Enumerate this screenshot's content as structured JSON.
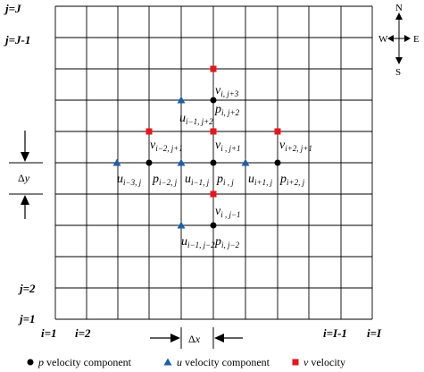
{
  "row_labels": {
    "top": {
      "base": "j",
      "suffix": "=J"
    },
    "second": {
      "base": "j",
      "suffix": "=J-1"
    },
    "row2": {
      "base": "j",
      "suffix": "=2"
    },
    "row1": {
      "base": "j",
      "suffix": "=1"
    }
  },
  "col_labels": {
    "c1": {
      "base": "i",
      "suffix": "=1"
    },
    "c2": {
      "base": "i",
      "suffix": "=2"
    },
    "cIm1": {
      "base": "i",
      "suffix": "=I-1"
    },
    "cI": {
      "base": "i",
      "suffix": "=I"
    }
  },
  "compass": {
    "n": "N",
    "s": "S",
    "e": "E",
    "w": "W"
  },
  "spacing": {
    "dy": {
      "delta": "Δ",
      "var": "y"
    },
    "dx": {
      "delta": "Δ",
      "var": "x"
    }
  },
  "variables": {
    "v_i_j3": {
      "base": "v",
      "sub": "i, j+3"
    },
    "p_i_j2": {
      "base": "p",
      "sub": "i, j+2"
    },
    "u_im1_j2": {
      "base": "u",
      "sub": "i−1, j+2"
    },
    "v_im2_j1": {
      "base": "v",
      "sub": "i−2, j+1"
    },
    "v_i_j1": {
      "base": "v",
      "sub": "i , j+1"
    },
    "v_ip2_j1": {
      "base": "v",
      "sub": "i+2, j+1"
    },
    "u_im3_j": {
      "base": "u",
      "sub": "i−3, j"
    },
    "p_im2_j": {
      "base": "p",
      "sub": "i−2, j"
    },
    "u_im1_j": {
      "base": "u",
      "sub": "i−1, j"
    },
    "p_i_j": {
      "base": "p",
      "sub": "i , j"
    },
    "u_ip1_j": {
      "base": "u",
      "sub": "i+1, j"
    },
    "p_ip2_j": {
      "base": "p",
      "sub": "i+2, j"
    },
    "v_i_jm1": {
      "base": "v",
      "sub": "i , j−1"
    },
    "u_im1_jm2": {
      "base": "u",
      "sub": "i−1, j−2"
    },
    "p_i_jm2": {
      "base": "p",
      "sub": "i, j−2"
    }
  },
  "legend": {
    "p": {
      "var": "p",
      "text": "velocity component"
    },
    "u": {
      "var": "u",
      "text": "velocity component"
    },
    "v": {
      "var": "v",
      "text": "velocity"
    }
  },
  "colors": {
    "p_marker": "#000000",
    "u_marker": "#1f5fa8",
    "v_marker": "#e8161b",
    "grid": "#000000"
  }
}
